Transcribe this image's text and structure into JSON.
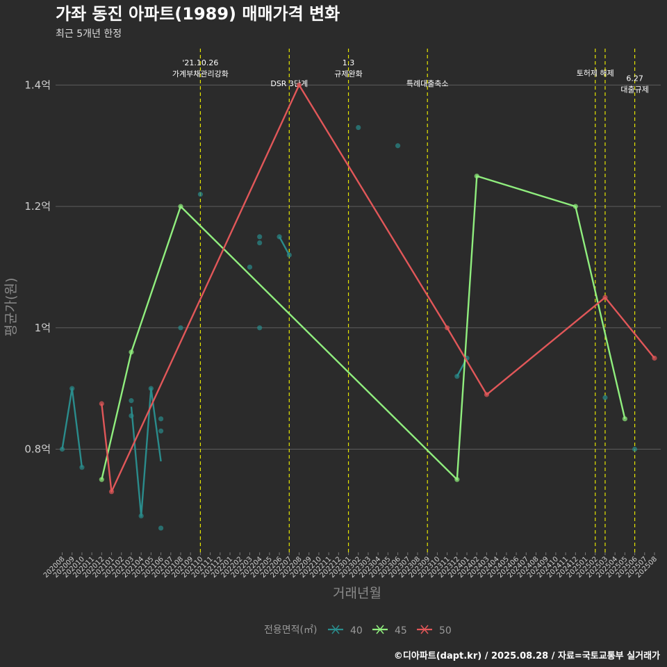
{
  "chart_data": {
    "type": "line",
    "title": "가좌 동진 아파트(1989) 매매가격 변화",
    "subtitle": "최근 5개년 한정",
    "xlabel": "거래년월",
    "ylabel": "평균가(원)",
    "ylim": [
      0.63,
      1.46
    ],
    "ytick_values": [
      0.8,
      1.0,
      1.2,
      1.4
    ],
    "ytick_labels": [
      "0.8억",
      "1억",
      "1.2억",
      "1.4억"
    ],
    "categories": [
      "202008",
      "202009",
      "202010",
      "202011",
      "202012",
      "202101",
      "202102",
      "202103",
      "202104",
      "202105",
      "202106",
      "202107",
      "202108",
      "202109",
      "202110",
      "202111",
      "202112",
      "202201",
      "202202",
      "202203",
      "202204",
      "202205",
      "202206",
      "202207",
      "202208",
      "202209",
      "202210",
      "202211",
      "202212",
      "202301",
      "202302",
      "202303",
      "202304",
      "202305",
      "202306",
      "202307",
      "202308",
      "202309",
      "202310",
      "202311",
      "202312",
      "202401",
      "202402",
      "202403",
      "202404",
      "202405",
      "202406",
      "202407",
      "202408",
      "202409",
      "202410",
      "202411",
      "202412",
      "202501",
      "202502",
      "202503",
      "202504",
      "202505",
      "202506",
      "202507",
      "202508"
    ],
    "grid": true,
    "legend": {
      "title": "전용면적(㎡)",
      "position": "bottom"
    },
    "series": [
      {
        "name": "40",
        "color": "#2a8c8c",
        "lines": [
          [
            [
              "202008",
              0.8
            ],
            [
              "202009",
              0.9
            ],
            [
              "202010",
              0.77
            ]
          ],
          [
            [
              "202103",
              0.87
            ],
            [
              "202104",
              0.69
            ],
            [
              "202105",
              0.9
            ],
            [
              "202106",
              0.78
            ]
          ],
          [
            [
              "202206",
              1.15
            ],
            [
              "202207",
              1.12
            ]
          ],
          [
            [
              "202312",
              0.92
            ],
            [
              "202401",
              0.95
            ]
          ]
        ],
        "points": [
          [
            "202008",
            0.8
          ],
          [
            "202009",
            0.9
          ],
          [
            "202010",
            0.77
          ],
          [
            "202103",
            0.88
          ],
          [
            "202103",
            0.855
          ],
          [
            "202104",
            0.69
          ],
          [
            "202105",
            0.9
          ],
          [
            "202106",
            0.85
          ],
          [
            "202106",
            0.83
          ],
          [
            "202106",
            0.67
          ],
          [
            "202108",
            1.0
          ],
          [
            "202110",
            1.22
          ],
          [
            "202203",
            1.1
          ],
          [
            "202204",
            1.15
          ],
          [
            "202204",
            1.14
          ],
          [
            "202204",
            1.0
          ],
          [
            "202206",
            1.15
          ],
          [
            "202207",
            1.12
          ],
          [
            "202302",
            1.33
          ],
          [
            "202306",
            1.3
          ],
          [
            "202312",
            0.92
          ],
          [
            "202401",
            0.95
          ],
          [
            "202503",
            0.885
          ],
          [
            "202506",
            0.8
          ]
        ]
      },
      {
        "name": "45",
        "color": "#90ee7e",
        "lines": [
          [
            [
              "202012",
              0.75
            ],
            [
              "202103",
              0.96
            ],
            [
              "202108",
              1.2
            ],
            [
              "202312",
              0.75
            ],
            [
              "202402",
              1.25
            ],
            [
              "202412",
              1.2
            ],
            [
              "202505",
              0.85
            ]
          ]
        ],
        "points": [
          [
            "202012",
            0.75
          ],
          [
            "202103",
            0.96
          ],
          [
            "202108",
            1.2
          ],
          [
            "202312",
            0.75
          ],
          [
            "202402",
            1.25
          ],
          [
            "202412",
            1.2
          ],
          [
            "202505",
            0.85
          ]
        ]
      },
      {
        "name": "50",
        "color": "#e15759",
        "lines": [
          [
            [
              "202012",
              0.875
            ],
            [
              "202101",
              0.73
            ],
            [
              "202208",
              1.4
            ],
            [
              "202311",
              1.0
            ],
            [
              "202403",
              0.89
            ],
            [
              "202503",
              1.05
            ],
            [
              "202508",
              0.95
            ]
          ]
        ],
        "points": [
          [
            "202012",
            0.875
          ],
          [
            "202101",
            0.73
          ],
          [
            "202208",
            1.4
          ],
          [
            "202311",
            1.0
          ],
          [
            "202403",
            0.89
          ],
          [
            "202503",
            1.05
          ],
          [
            "202508",
            0.95
          ]
        ]
      }
    ],
    "events": [
      {
        "x": "202110",
        "lines": [
          "'21.10.26",
          "가계부채관리강화"
        ],
        "level": 0
      },
      {
        "x": "202207",
        "lines": [
          "DSR 3단계"
        ],
        "level": 2
      },
      {
        "x": "202301",
        "lines": [
          "1.3",
          "규제완화"
        ],
        "level": 0
      },
      {
        "x": "202309",
        "lines": [
          "특례대출축소"
        ],
        "level": 2
      },
      {
        "x": "202502",
        "lines": [
          "토허제 해제"
        ],
        "level": 1
      },
      {
        "x": "202503",
        "lines": [],
        "level": 1
      },
      {
        "x": "202506",
        "lines": [
          "6.27",
          "대출규제"
        ],
        "level": 1.5
      }
    ],
    "event_color": "#e6e600"
  },
  "caption": "©디아파트(dapt.kr) / 2025.08.28 / 자료=국토교통부 실거래가"
}
